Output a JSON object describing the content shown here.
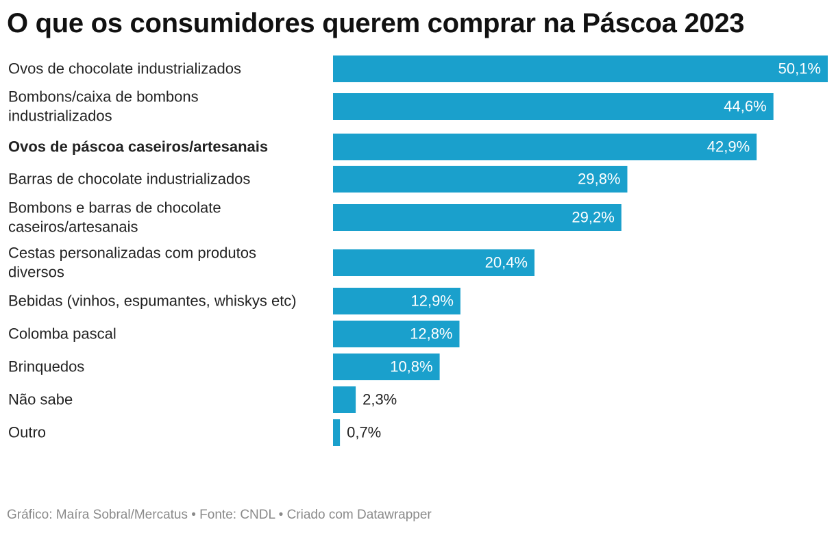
{
  "chart_data": {
    "type": "bar",
    "orientation": "horizontal",
    "title": "O que os consumidores querem comprar na Páscoa 2023",
    "categories": [
      "Ovos de chocolate industrializados",
      "Bombons/caixa de bombons industrializados",
      "Ovos de páscoa caseiros/artesanais",
      "Barras de chocolate industrializados",
      "Bombons e barras de chocolate caseiros/artesanais",
      "Cestas personalizadas com produtos diversos",
      "Bebidas (vinhos, espumantes, whiskys etc)",
      "Colomba pascal",
      "Brinquedos",
      "Não sabe",
      "Outro"
    ],
    "category_lines": [
      [
        "Ovos de chocolate industrializados"
      ],
      [
        "Bombons/caixa de bombons",
        "industrializados"
      ],
      [
        "Ovos de páscoa caseiros/artesanais"
      ],
      [
        "Barras de chocolate industrializados"
      ],
      [
        "Bombons e barras de chocolate",
        "caseiros/artesanais"
      ],
      [
        "Cestas personalizadas com produtos",
        "diversos"
      ],
      [
        "Bebidas (vinhos, espumantes, whiskys etc)"
      ],
      [
        "Colomba pascal"
      ],
      [
        "Brinquedos"
      ],
      [
        "Não sabe"
      ],
      [
        "Outro"
      ]
    ],
    "values": [
      50.1,
      44.6,
      42.9,
      29.8,
      29.2,
      20.4,
      12.9,
      12.8,
      10.8,
      2.3,
      0.7
    ],
    "value_labels": [
      "50,1%",
      "44,6%",
      "42,9%",
      "29,8%",
      "29,2%",
      "20,4%",
      "12,9%",
      "12,8%",
      "10,8%",
      "2,3%",
      "0,7%"
    ],
    "highlighted_category": "Ovos de páscoa caseiros/artesanais",
    "xlim": [
      0,
      50.1
    ],
    "grid": false,
    "legend": "none",
    "bar_color": "#1aa0cc",
    "label_inside_color": "#ffffff",
    "label_outside_color": "#222222"
  },
  "footer": "Gráfico: Maíra Sobral/Mercatus • Fonte: CNDL • Criado com Datawrapper"
}
